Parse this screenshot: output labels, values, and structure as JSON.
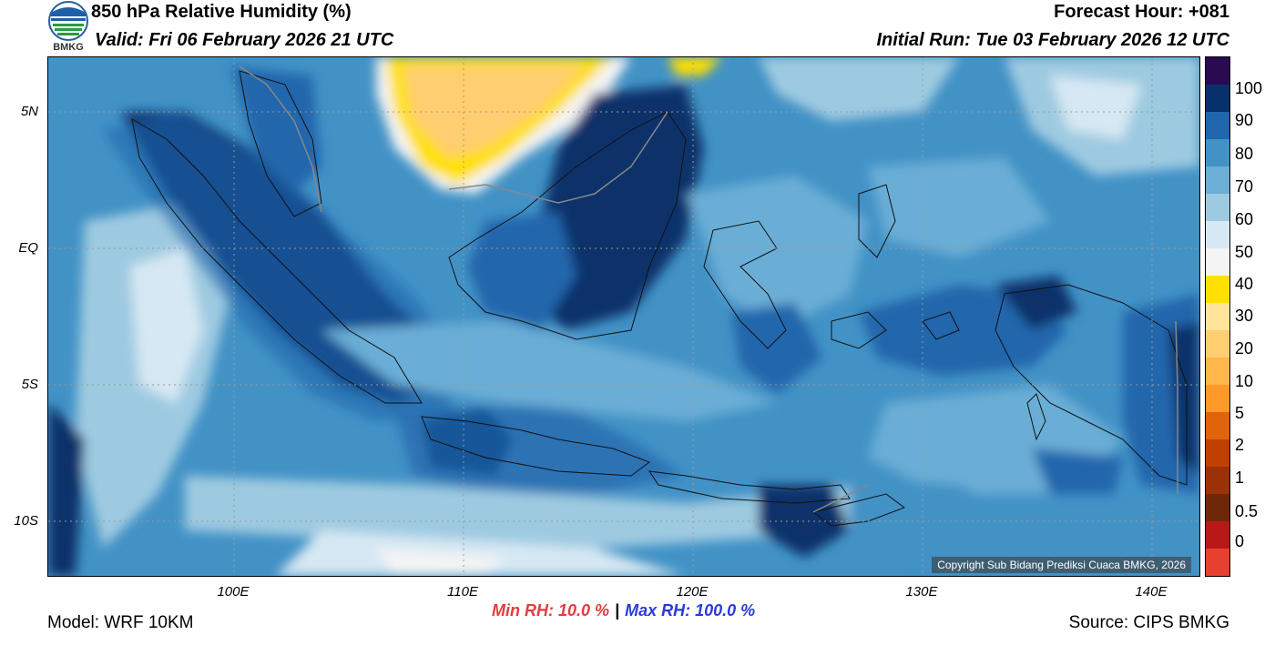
{
  "header": {
    "title": "850 hPa Relative Humidity (%)",
    "valid": "Valid: Fri 06 February 2026 21 UTC",
    "forecast_hour": "Forecast Hour: +081",
    "initial_run": "Initial Run: Tue 03 February 2026 12 UTC",
    "logo_text": "BMKG"
  },
  "axes": {
    "y_labels": [
      "5N",
      "EQ",
      "5S",
      "10S"
    ],
    "x_labels": [
      "100E",
      "110E",
      "120E",
      "130E",
      "140E"
    ]
  },
  "copyright": "Copyright Sub Bidang Prediksi Cuaca BMKG, 2026",
  "stats": {
    "min_rh": "Min RH:  10.0 %",
    "separator": "|",
    "max_rh": "Max RH: 100.0 %"
  },
  "footer": {
    "model": "Model: WRF 10KM",
    "source": "Source: CIPS BMKG"
  },
  "colorbar": {
    "labels": [
      "100",
      "90",
      "80",
      "70",
      "60",
      "50",
      "40",
      "30",
      "20",
      "10",
      "5",
      "2",
      "1",
      "0.5",
      "0"
    ],
    "colors": [
      "#2a0a50",
      "#08306b",
      "#2166ac",
      "#4292c6",
      "#6baed6",
      "#9ecae1",
      "#d6e8f3",
      "#f4f4f4",
      "#ffe000",
      "#ffe49a",
      "#ffce70",
      "#ffb64a",
      "#ff9a28",
      "#e0640a",
      "#c04000",
      "#9c3008",
      "#6e2808",
      "#b81818",
      "#e84030"
    ]
  },
  "palette": {
    "deep": "#08306b",
    "dark": "#2166ac",
    "mid": "#4292c6",
    "light": "#6baed6",
    "pale": "#9ecae1",
    "veryPale": "#d6e8f3",
    "dry1": "#ffe000",
    "dry2": "#ffce70",
    "coast": "#111111",
    "border": "#888888"
  }
}
